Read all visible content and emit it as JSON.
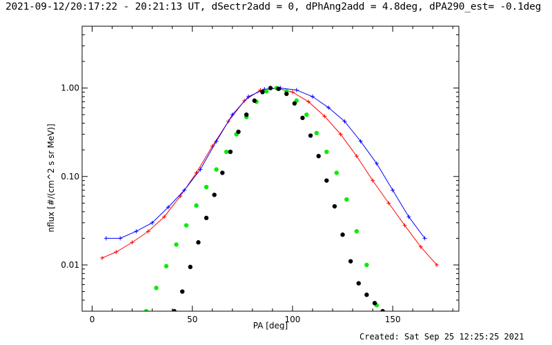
{
  "header": {
    "title": "2021-09-12/20:17:22 - 20:21:13 UT, dSectr2add = 0, dPhAng2add = 4.8deg, dPA290_est= -0.1deg"
  },
  "footer": {
    "created": "Created: Sat Sep 25 12:25:25 2021"
  },
  "colors": {
    "red": "#ff0000",
    "blue": "#0000ff",
    "green": "#00ee00",
    "black": "#000000",
    "axis": "#000000"
  },
  "chart_data": {
    "type": "line",
    "title": "",
    "xlabel": "PA [deg]",
    "ylabel": "nflux [#/(cm^2 s sr MeV)]",
    "xlim": [
      -5,
      183
    ],
    "ylim": [
      0.003,
      5.0
    ],
    "yscale": "log",
    "grid": false,
    "x_ticks": [
      0,
      50,
      100,
      150
    ],
    "x_tick_labels": [
      "0",
      "50",
      "100",
      "150"
    ],
    "y_ticks": [
      0.01,
      0.1,
      1.0
    ],
    "y_tick_labels": [
      "0.01",
      "0.10",
      "1.00"
    ],
    "series": [
      {
        "color": "red",
        "marker": "+",
        "x": [
          5,
          12,
          20,
          28,
          36,
          44,
          52,
          60,
          68,
          76,
          84,
          92,
          100,
          108,
          116,
          124,
          132,
          140,
          148,
          156,
          164,
          172
        ],
        "y": [
          0.012,
          0.014,
          0.018,
          0.024,
          0.035,
          0.06,
          0.11,
          0.22,
          0.42,
          0.72,
          0.95,
          1.0,
          0.9,
          0.7,
          0.48,
          0.3,
          0.17,
          0.09,
          0.05,
          0.028,
          0.016,
          0.01
        ]
      },
      {
        "color": "blue",
        "marker": "+",
        "x": [
          7,
          14,
          22,
          30,
          38,
          46,
          54,
          62,
          70,
          78,
          86,
          94,
          102,
          110,
          118,
          126,
          134,
          142,
          150,
          158,
          166
        ],
        "y": [
          0.02,
          0.02,
          0.024,
          0.03,
          0.045,
          0.07,
          0.12,
          0.25,
          0.5,
          0.8,
          0.97,
          1.0,
          0.95,
          0.8,
          0.6,
          0.42,
          0.25,
          0.14,
          0.07,
          0.035,
          0.02
        ]
      },
      {
        "color": "green",
        "marker": "dot",
        "name": "",
        "x": [
          27,
          32,
          37,
          42,
          47,
          52,
          57,
          62,
          67,
          72,
          77,
          82,
          87,
          92,
          97,
          102,
          107,
          112,
          117,
          122,
          127,
          132,
          137,
          142
        ],
        "y": [
          0.003,
          0.0055,
          0.0097,
          0.017,
          0.028,
          0.047,
          0.076,
          0.12,
          0.19,
          0.3,
          0.47,
          0.7,
          0.92,
          1.0,
          0.92,
          0.72,
          0.5,
          0.31,
          0.19,
          0.11,
          0.055,
          0.024,
          0.01,
          0.0035
        ]
      },
      {
        "color": "black",
        "marker": "dot",
        "name": "",
        "x": [
          41,
          45,
          49,
          53,
          57,
          61,
          65,
          69,
          73,
          77,
          81,
          85,
          89,
          93,
          97,
          101,
          105,
          109,
          113,
          117,
          121,
          125,
          129,
          133,
          137,
          141,
          145
        ],
        "y": [
          0.003,
          0.005,
          0.0095,
          0.018,
          0.034,
          0.062,
          0.11,
          0.19,
          0.32,
          0.5,
          0.72,
          0.9,
          1.0,
          0.98,
          0.86,
          0.67,
          0.46,
          0.29,
          0.17,
          0.09,
          0.046,
          0.022,
          0.011,
          0.0062,
          0.0046,
          0.0037,
          0.003
        ]
      }
    ]
  }
}
